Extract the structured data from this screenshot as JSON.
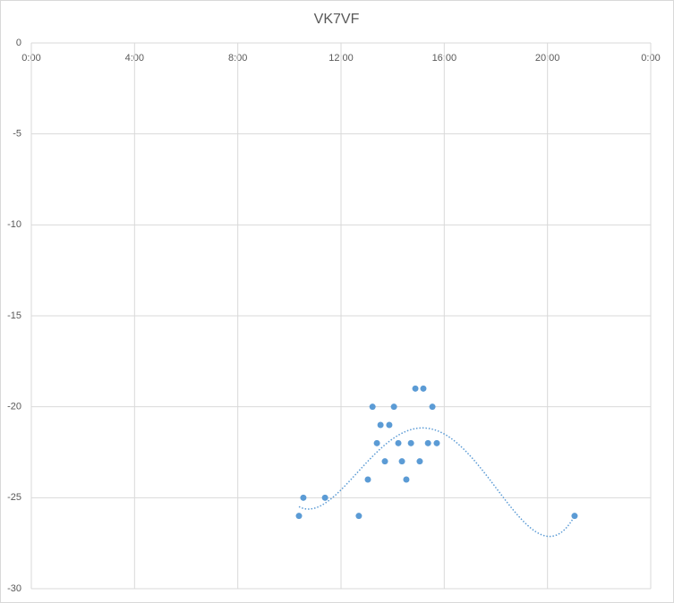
{
  "chart_data": {
    "type": "scatter",
    "title": "VK7VF",
    "x": [
      10.37,
      10.54,
      11.38,
      12.69,
      13.04,
      13.22,
      13.39,
      13.53,
      13.7,
      13.87,
      14.05,
      14.22,
      14.36,
      14.53,
      14.71,
      14.88,
      15.05,
      15.19,
      15.37,
      15.54,
      15.71,
      21.05
    ],
    "series": [
      {
        "color": "#5b9bd5",
        "values": [
          -26,
          -25,
          -25,
          -26,
          -24,
          -20,
          -22,
          -21,
          -23,
          -21,
          -20,
          -22,
          -23,
          -24,
          -22,
          -19,
          -23,
          -19,
          -22,
          -20,
          -22,
          -26
        ]
      }
    ],
    "trendline": {
      "type": "polynomial",
      "order": 4
    },
    "xlim": [
      0,
      24
    ],
    "xticks": [
      {
        "value": 0,
        "label": "0:00"
      },
      {
        "value": 4,
        "label": "4:00"
      },
      {
        "value": 8,
        "label": "8:00"
      },
      {
        "value": 12,
        "label": "12:00"
      },
      {
        "value": 16,
        "label": "16:00"
      },
      {
        "value": 20,
        "label": "20:00"
      },
      {
        "value": 24,
        "label": "0:00"
      }
    ],
    "ylim": [
      -30,
      0
    ],
    "yticks": [
      0,
      -5,
      -10,
      -15,
      -20,
      -25,
      -30
    ],
    "grid": true
  }
}
